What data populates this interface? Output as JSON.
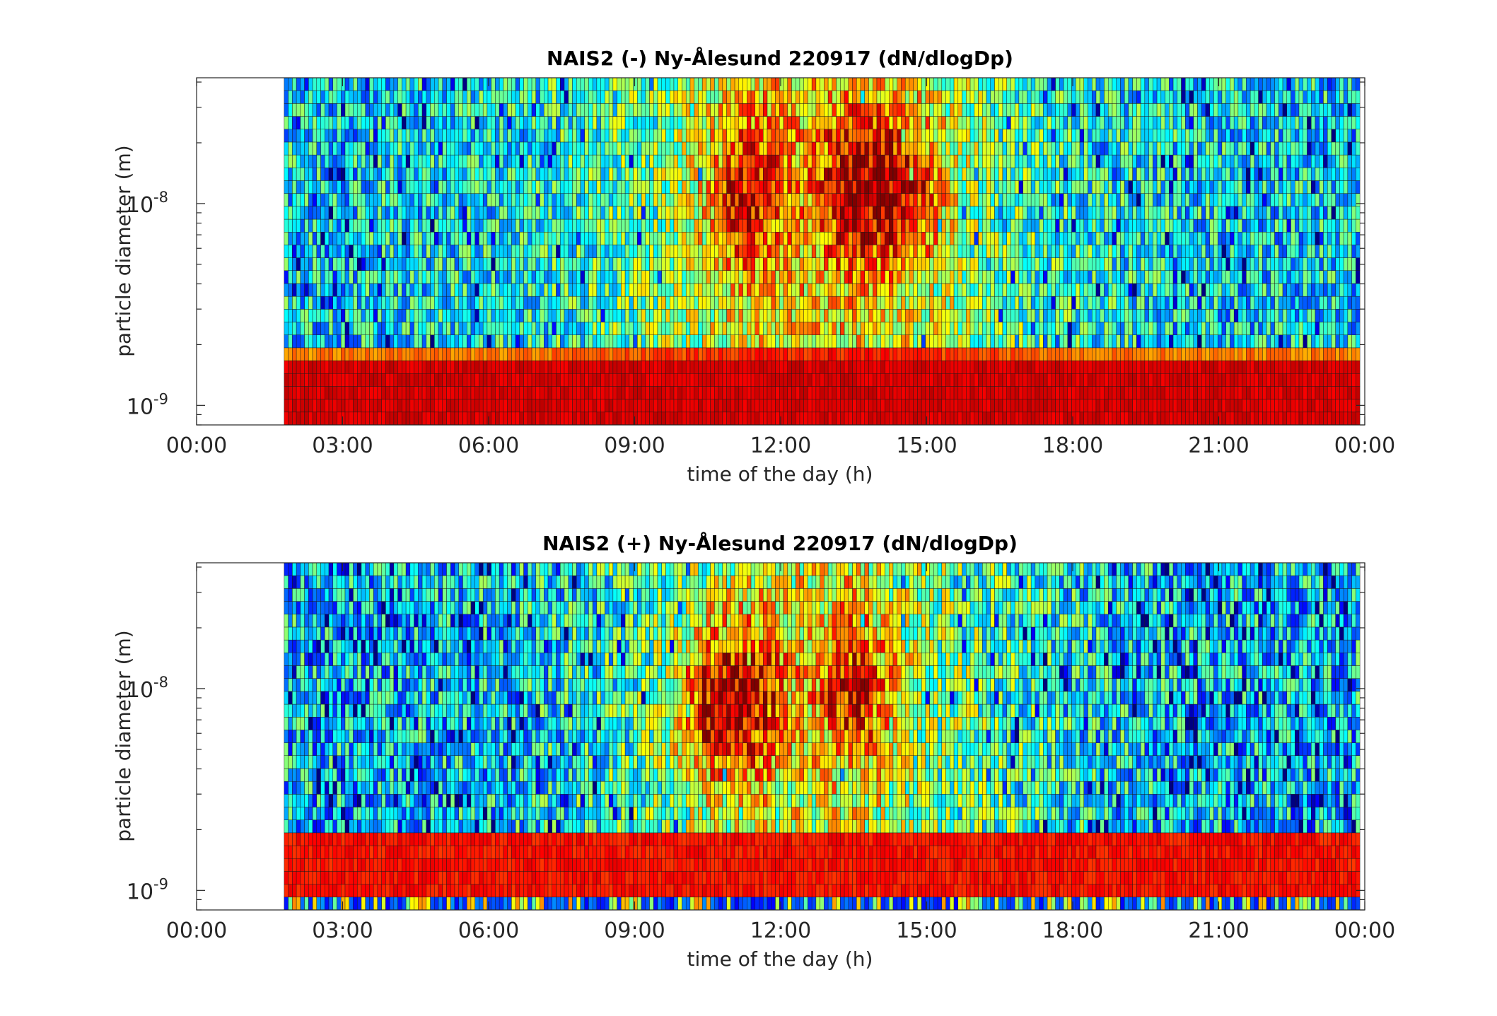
{
  "chart_data": [
    {
      "type": "heatmap",
      "title": "NAIS2 (-) Ny-Ålesund 220917 (dN/dlogDp)",
      "xlabel": "time of the day (h)",
      "ylabel": "particle diameter (m)",
      "x_ticks": [
        "00:00",
        "03:00",
        "06:00",
        "09:00",
        "12:00",
        "15:00",
        "18:00",
        "21:00",
        "00:00"
      ],
      "y_ticks": [
        {
          "base": "10",
          "exp": "-9",
          "value": 1e-09
        },
        {
          "base": "10",
          "exp": "-8",
          "value": 1e-08
        }
      ],
      "xlim_hours": [
        0,
        24
      ],
      "ylim_m": [
        8e-10,
        4.2e-08
      ],
      "y_scale": "log",
      "data_start_hours": 1.8,
      "data_end_hours": 23.9,
      "colormap": "jet",
      "features": {
        "lowest_size_band": "red (high concentration) across the whole day",
        "intermediate_band_2e-9m": "yellow/orange",
        "upper_sizes": "blue-cyan at night, green-yellow-orange during 09:00-17:00",
        "hotspots": [
          {
            "time_hours": 11.3,
            "diameter_m": 1.1e-08,
            "level": "orange-red"
          },
          {
            "time_hours": 13.5,
            "diameter_m": 1.2e-08,
            "level": "orange"
          },
          {
            "time_hours": 14.6,
            "diameter_m": 1.1e-08,
            "level": "orange"
          }
        ]
      }
    },
    {
      "type": "heatmap",
      "title": "NAIS2 (+) Ny-Ålesund 220917 (dN/dlogDp)",
      "xlabel": "time of the day (h)",
      "ylabel": "particle diameter (m)",
      "x_ticks": [
        "00:00",
        "03:00",
        "06:00",
        "09:00",
        "12:00",
        "15:00",
        "18:00",
        "21:00",
        "00:00"
      ],
      "y_ticks": [
        {
          "base": "10",
          "exp": "-9",
          "value": 1e-09
        },
        {
          "base": "10",
          "exp": "-8",
          "value": 1e-08
        }
      ],
      "xlim_hours": [
        0,
        24
      ],
      "ylim_m": [
        8e-10,
        4.2e-08
      ],
      "y_scale": "log",
      "data_start_hours": 1.8,
      "data_end_hours": 23.9,
      "colormap": "jet",
      "features": {
        "lowest_size_row": "noisy blue/yellow",
        "band_1e-9_to_2e-9m": "orange-red across the whole day",
        "upper_sizes": "blue-cyan at night, green-yellow during 09:00-17:00",
        "hotspots": [
          {
            "time_hours": 11.4,
            "diameter_m": 9e-09,
            "level": "orange"
          },
          {
            "time_hours": 13.5,
            "diameter_m": 1e-08,
            "level": "orange"
          },
          {
            "time_hours": 10.5,
            "diameter_m": 8e-09,
            "level": "yellow-orange"
          }
        ]
      }
    }
  ]
}
